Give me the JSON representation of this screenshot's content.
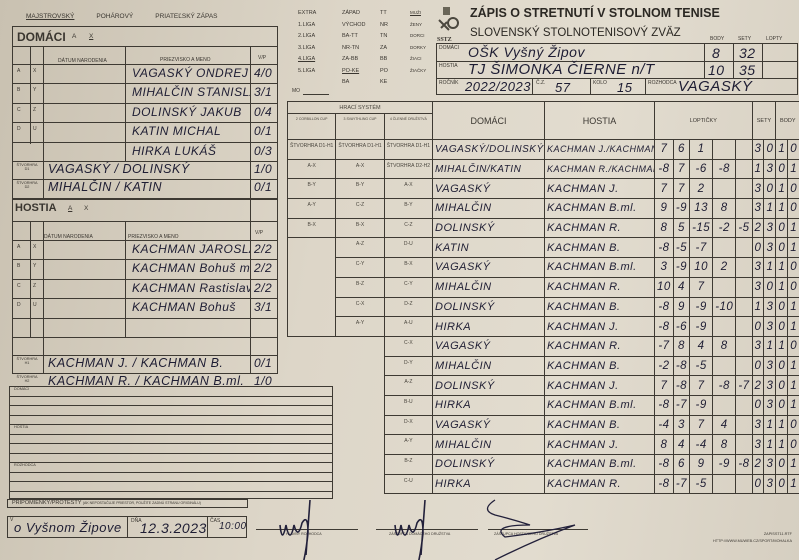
{
  "match_type": {
    "options": [
      "MAJSTROVSKÝ",
      "POHÁROVÝ",
      "PRIATEĽSKÝ ZÁPAS"
    ],
    "selected": "MAJSTROVSKÝ"
  },
  "leagues": {
    "col1": [
      "EXTRA",
      "1.LIGA",
      "2.LIGA",
      "3.LIGA",
      "4.LIGA",
      "5.LIGA"
    ],
    "col2": [
      "ZÁPAD",
      "VÝCHOD",
      "BA-TT",
      "NR-TN",
      "ZA-BB",
      "PO-KE",
      "BA"
    ],
    "col3": [
      "TT",
      "NR",
      "TN",
      "ZA",
      "BB",
      "PO",
      "KE"
    ],
    "col4": [
      "MUŽI",
      "ŽENY",
      "DORCI",
      "DORKY",
      "ŽIACI",
      "ŽIAČKY"
    ],
    "selected": [
      "4.LIGA",
      "PO-KE",
      "MUŽI"
    ],
    "mo_label": "MO"
  },
  "header": {
    "title": "ZÁPIS O STRETNUTÍ V STOLNOM TENISE",
    "subtitle": "SLOVENSKÝ STOLNOTENISOVÝ ZVÄZ",
    "logo_text": "SSTZ"
  },
  "summary": {
    "labels": {
      "body": "BODY",
      "sety": "SETY",
      "lopty": "LOPTY",
      "domaci": "DOMÁCI",
      "hostia": "HOSTIA",
      "rocnik": "ROČNÍK",
      "cz": "Č.Z.",
      "kolo": "KOLO",
      "rozhodca": "ROZHODCA"
    },
    "home_team": "OŠK Vyšný Žipov",
    "away_team": "TJ ŠIMONKA ČIERNE n/T",
    "home_points": "8",
    "home_sets": "32",
    "away_points": "10",
    "away_sets": "35",
    "rocnik": "2022/2023",
    "cz": "57",
    "kolo": "15",
    "rozhodca": "VAGASKÝ"
  },
  "home": {
    "title": "DOMÁCI",
    "ax": [
      "A",
      "X"
    ],
    "ax_selected": "X",
    "col_birth": "DÁTUM NARODENIA",
    "col_name": "PRIEZVISKO A MENO",
    "col_vp": "V/P",
    "players": [
      {
        "l1": "A",
        "l2": "X",
        "name": "VAGASKÝ ONDREJ",
        "vp": "4/0"
      },
      {
        "l1": "B",
        "l2": "Y",
        "name": "MIHALČIN STANISLAV",
        "vp": "3/1"
      },
      {
        "l1": "C",
        "l2": "Z",
        "name": "DOLINSKÝ JAKUB",
        "vp": "0/4"
      },
      {
        "l1": "D",
        "l2": "U",
        "name": "KATIN MICHAL",
        "vp": "0/1"
      },
      {
        "l1": "",
        "l2": "",
        "name": "HIRKA LUKÁŠ",
        "vp": "0/3"
      }
    ],
    "doubles": [
      {
        "label": "ŠTVORHRA D1",
        "name": "VAGASKÝ / DOLINSKÝ",
        "vp": "1/0"
      },
      {
        "label": "ŠTVORHRA D2",
        "name": "MIHALČIN / KATIN",
        "vp": "0/1"
      }
    ]
  },
  "away": {
    "title": "HOSTIA",
    "ax": [
      "A",
      "X"
    ],
    "ax_selected": "A",
    "col_birth": "DÁTUM NARODENIA",
    "col_name": "PRIEZVISKO A MENO",
    "col_vp": "V/P",
    "players": [
      {
        "l1": "A",
        "l2": "X",
        "name": "KACHMAN JAROSLAV",
        "vp": "2/2"
      },
      {
        "l1": "B",
        "l2": "Y",
        "name": "KACHMAN Bohuš ml.",
        "vp": "2/2"
      },
      {
        "l1": "C",
        "l2": "Z",
        "name": "KACHMAN Rastislav",
        "vp": "2/2"
      },
      {
        "l1": "D",
        "l2": "U",
        "name": "KACHMAN Bohuš",
        "vp": "3/1"
      },
      {
        "l1": "",
        "l2": "",
        "name": "",
        "vp": ""
      }
    ],
    "doubles": [
      {
        "label": "ŠTVORHRA H1",
        "name": "KACHMAN J. / KACHMAN B.",
        "vp": "0/1"
      },
      {
        "label": "ŠTVORHRA H2",
        "name": "KACHMAN R. / KACHMAN B.ml.",
        "vp": "1/0"
      }
    ]
  },
  "notes": {
    "sections": [
      "DOMÁCI",
      "HOSTIA",
      "ROZHODCA"
    ],
    "protest_label": "PRIPOMIENKY/PROTESTY",
    "protest_note": "(AK NEPOSTAČUJE PRIESTOR, POUŽITE ZADNÚ STRANU ORIGINÁLU)"
  },
  "place": {
    "label": "V",
    "value": "o Vyšnom Žipove",
    "date_label": "DŇA",
    "date": "12.3.2023",
    "time_label": "ČAS",
    "time": "10:00"
  },
  "signatures": [
    "HLAVNÝ ROZHODCA",
    "ZÁSTUPCA DOMÁCEHO DRUŽSTVA",
    "ZÁSTUPCA HOSTIÚCEHO DRUŽSTVA"
  ],
  "footer": {
    "file": "ZAPISST11.RTF",
    "url": "HTTP://WWW.MUWEB.CZ/SPORT/MOHALKA"
  },
  "games": {
    "system_label": "HRACÍ SYSTÉM",
    "system_cols": [
      "2 CORBILLON CUP",
      "3 SVAYTHLING CUP",
      "4 ČLENNÉ DRUŽSTVÁ"
    ],
    "col_home": "DOMÁCI",
    "col_away": "HOSTIA",
    "col_balls": "LOPTIČKY",
    "col_sets": "SETY",
    "col_points": "BODY",
    "rows": [
      {
        "s2": "ŠTVORHRA D1-H1",
        "s3": "ŠTVORHRA D1-H1",
        "s4": "ŠTVORHRA D1-H1",
        "home": "VAGASKÝ/DOLINSKÝ",
        "away": "KACHMAN J./KACHMAN B.",
        "balls": [
          "7",
          "6",
          "1",
          "",
          ""
        ],
        "sets": [
          "3",
          "0"
        ],
        "points": [
          "1",
          "0"
        ]
      },
      {
        "s2": "A-X",
        "s3": "A-X",
        "s4": "ŠTVORHRA D2-H2",
        "home": "MIHALČIN/KATIN",
        "away": "KACHMAN R./KACHMAN B.",
        "balls": [
          "-8",
          "7",
          "-6",
          "-8",
          ""
        ],
        "sets": [
          "1",
          "3"
        ],
        "points": [
          "0",
          "1"
        ]
      },
      {
        "s2": "B-Y",
        "s3": "B-Y",
        "s4": "A-X",
        "home": "VAGASKÝ",
        "away": "KACHMAN J.",
        "balls": [
          "7",
          "7",
          "2",
          "",
          ""
        ],
        "sets": [
          "3",
          "0"
        ],
        "points": [
          "1",
          "0"
        ]
      },
      {
        "s2": "A-Y",
        "s3": "C-Z",
        "s4": "B-Y",
        "home": "MIHALČIN",
        "away": "KACHMAN B.ml.",
        "balls": [
          "9",
          "-9",
          "13",
          "8",
          ""
        ],
        "sets": [
          "3",
          "1"
        ],
        "points": [
          "1",
          "0"
        ]
      },
      {
        "s2": "B-X",
        "s3": "B-X",
        "s4": "C-Z",
        "home": "DOLINSKÝ",
        "away": "KACHMAN R.",
        "balls": [
          "8",
          "5",
          "-15",
          "-2",
          "-5"
        ],
        "sets": [
          "2",
          "3"
        ],
        "points": [
          "0",
          "1"
        ]
      },
      {
        "s2": "",
        "s3": "A-Z",
        "s4": "D-U",
        "home": "KATIN",
        "away": "KACHMAN B.",
        "balls": [
          "-8",
          "-5",
          "-7",
          "",
          ""
        ],
        "sets": [
          "0",
          "3"
        ],
        "points": [
          "0",
          "1"
        ]
      },
      {
        "s2": "",
        "s3": "C-Y",
        "s4": "B-X",
        "home": "VAGASKÝ",
        "away": "KACHMAN B.ml.",
        "balls": [
          "3",
          "-9",
          "10",
          "2",
          ""
        ],
        "sets": [
          "3",
          "1"
        ],
        "points": [
          "1",
          "0"
        ]
      },
      {
        "s2": "",
        "s3": "B-Z",
        "s4": "C-Y",
        "home": "MIHALČIN",
        "away": "KACHMAN R.",
        "balls": [
          "10",
          "4",
          "7",
          "",
          ""
        ],
        "sets": [
          "3",
          "0"
        ],
        "points": [
          "1",
          "0"
        ]
      },
      {
        "s2": "",
        "s3": "C-X",
        "s4": "D-Z",
        "home": "DOLINSKÝ",
        "away": "KACHMAN B.",
        "balls": [
          "-8",
          "9",
          "-9",
          "-10",
          ""
        ],
        "sets": [
          "1",
          "3"
        ],
        "points": [
          "0",
          "1"
        ]
      },
      {
        "s2": "",
        "s3": "A-Y",
        "s4": "A-U",
        "home": "HIRKA",
        "away": "KACHMAN J.",
        "balls": [
          "-8",
          "-6",
          "-9",
          "",
          ""
        ],
        "sets": [
          "0",
          "3"
        ],
        "points": [
          "0",
          "1"
        ]
      },
      {
        "s4": "C-X",
        "home": "VAGASKÝ",
        "away": "KACHMAN R.",
        "balls": [
          "-7",
          "8",
          "4",
          "8",
          ""
        ],
        "sets": [
          "3",
          "1"
        ],
        "points": [
          "1",
          "0"
        ]
      },
      {
        "s4": "D-Y",
        "home": "MIHALČIN",
        "away": "KACHMAN B.",
        "balls": [
          "-2",
          "-8",
          "-5",
          "",
          ""
        ],
        "sets": [
          "0",
          "3"
        ],
        "points": [
          "0",
          "1"
        ]
      },
      {
        "s4": "A-Z",
        "home": "DOLINSKÝ",
        "away": "KACHMAN J.",
        "balls": [
          "7",
          "-8",
          "7",
          "-8",
          "-7"
        ],
        "sets": [
          "2",
          "3"
        ],
        "points": [
          "0",
          "1"
        ]
      },
      {
        "s4": "B-U",
        "home": "HIRKA",
        "away": "KACHMAN B.ml.",
        "balls": [
          "-8",
          "-7",
          "-9",
          "",
          ""
        ],
        "sets": [
          "0",
          "3"
        ],
        "points": [
          "0",
          "1"
        ]
      },
      {
        "s4": "D-X",
        "home": "VAGASKÝ",
        "away": "KACHMAN B.",
        "balls": [
          "-4",
          "3",
          "7",
          "4",
          ""
        ],
        "sets": [
          "3",
          "1"
        ],
        "points": [
          "1",
          "0"
        ]
      },
      {
        "s4": "A-Y",
        "home": "MIHALČIN",
        "away": "KACHMAN J.",
        "balls": [
          "8",
          "4",
          "-4",
          "8",
          ""
        ],
        "sets": [
          "3",
          "1"
        ],
        "points": [
          "1",
          "0"
        ]
      },
      {
        "s4": "B-Z",
        "home": "DOLINSKÝ",
        "away": "KACHMAN B.ml.",
        "balls": [
          "-8",
          "6",
          "9",
          "-9",
          "-8"
        ],
        "sets": [
          "2",
          "3"
        ],
        "points": [
          "0",
          "1"
        ]
      },
      {
        "s4": "C-U",
        "home": "HIRKA",
        "away": "KACHMAN R.",
        "balls": [
          "-8",
          "-7",
          "-5",
          "",
          ""
        ],
        "sets": [
          "0",
          "3"
        ],
        "points": [
          "0",
          "1"
        ]
      }
    ]
  }
}
